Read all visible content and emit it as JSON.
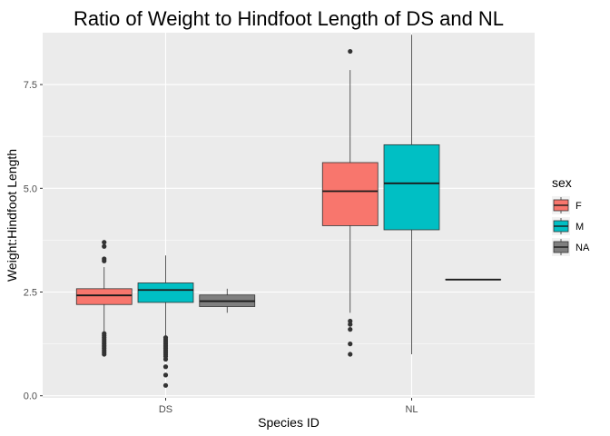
{
  "chart_data": {
    "type": "boxplot",
    "title": "Ratio of Weight to Hindfoot Length of DS and NL",
    "xlabel": "Species ID",
    "ylabel": "Weight:Hindfoot Length",
    "categories": [
      "DS",
      "NL"
    ],
    "ylim": [
      -0.05,
      8.75
    ],
    "y_ticks": [
      0.0,
      2.5,
      5.0,
      7.5
    ],
    "y_tick_labels": [
      "0.0",
      "2.5",
      "5.0",
      "7.5"
    ],
    "grid": true,
    "legend": {
      "title": "sex",
      "placement": "right",
      "entries": [
        {
          "label": "F",
          "color": "#F8766D"
        },
        {
          "label": "M",
          "color": "#00BFC4"
        },
        {
          "label": "NA",
          "color": "#7F7F7F"
        }
      ]
    },
    "series": [
      {
        "name": "F",
        "color": "#F8766D",
        "boxes": [
          {
            "category": "DS",
            "whisker_low": 1.0,
            "q1": 2.2,
            "median": 2.42,
            "q3": 2.58,
            "whisker_high": 3.1,
            "outliers": [
              1.0,
              1.05,
              1.1,
              1.15,
              1.2,
              1.25,
              1.3,
              1.35,
              1.4,
              1.45,
              1.5,
              3.25,
              3.3,
              3.6,
              3.7
            ]
          },
          {
            "category": "NL",
            "whisker_low": 2.0,
            "q1": 4.1,
            "median": 4.93,
            "q3": 5.62,
            "whisker_high": 7.85,
            "outliers": [
              1.0,
              1.25,
              1.6,
              1.72,
              1.8,
              8.3
            ]
          }
        ]
      },
      {
        "name": "M",
        "color": "#00BFC4",
        "boxes": [
          {
            "category": "DS",
            "whisker_low": 1.45,
            "q1": 2.25,
            "median": 2.55,
            "q3": 2.72,
            "whisker_high": 3.38,
            "outliers": [
              0.25,
              0.5,
              0.7,
              0.88,
              0.95,
              1.0,
              1.05,
              1.1,
              1.15,
              1.2,
              1.25,
              1.3,
              1.35,
              1.4
            ]
          },
          {
            "category": "NL",
            "whisker_low": 1.0,
            "q1": 4.0,
            "median": 5.12,
            "q3": 6.05,
            "whisker_high": 8.7,
            "outliers": []
          }
        ]
      },
      {
        "name": "NA",
        "color": "#7F7F7F",
        "boxes": [
          {
            "category": "DS",
            "whisker_low": 2.0,
            "q1": 2.15,
            "median": 2.28,
            "q3": 2.43,
            "whisker_high": 2.58,
            "outliers": []
          },
          {
            "category": "NL",
            "whisker_low": 2.8,
            "q1": 2.8,
            "median": 2.8,
            "q3": 2.8,
            "whisker_high": 2.8,
            "outliers": []
          }
        ]
      }
    ]
  }
}
